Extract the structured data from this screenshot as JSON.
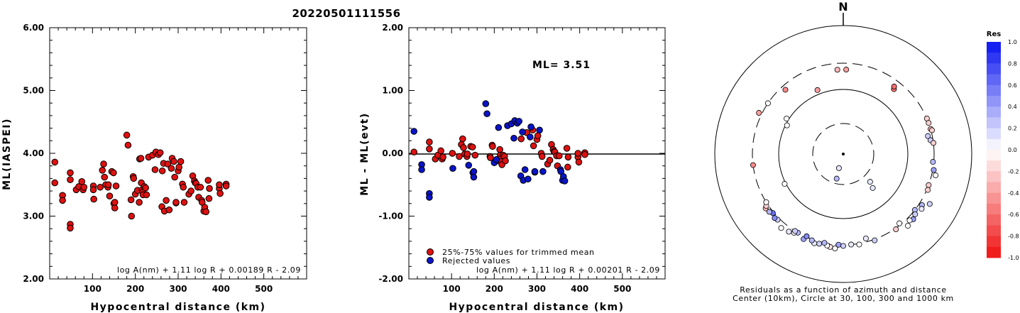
{
  "title": "20220501111556",
  "left_panel": {
    "ylabel": "ML(IASPEI)",
    "xlabel": "Hypocentral distance (km)",
    "formula": "log A(nm) + 1.11 log R + 0.00189 R - 2.09"
  },
  "mid_panel": {
    "ylabel": "ML - ML(evt)",
    "xlabel": "Hypocentral distance (km)",
    "ml_label": "ML= 3.51",
    "legend_used": "25%-75% values for trimmed mean",
    "legend_rejected": "Rejected values",
    "formula": "log A(nm) + 1.11 log R + 0.00201 R - 2.09"
  },
  "right_panel": {
    "north": "N",
    "colorbar_title": "Res",
    "caption1": "Residuals as a function of azimuth and distance",
    "caption2": "Center (10km), Circle at 30, 100, 300 and 1000 km"
  },
  "colors": {
    "used": "#dd1111",
    "rejected": "#0a14c8",
    "pos_res": "#0a14f0",
    "neg_res": "#f01010"
  },
  "chart_data": [
    {
      "type": "scatter",
      "title": "20220501111556",
      "xlabel": "Hypocentral distance (km)",
      "ylabel": "ML(IASPEI)",
      "xlim": [
        0,
        600
      ],
      "ylim": [
        2.0,
        6.0
      ],
      "x_ticks": [
        "100",
        "200",
        "300",
        "400",
        "500"
      ],
      "y_ticks": [
        "2.00",
        "3.00",
        "4.00",
        "5.00",
        "6.00"
      ],
      "points": [
        [
          12,
          3.86
        ],
        [
          12,
          3.53
        ],
        [
          30,
          3.33
        ],
        [
          30,
          3.25
        ],
        [
          48,
          3.69
        ],
        [
          48,
          3.58
        ],
        [
          48,
          2.87
        ],
        [
          48,
          2.81
        ],
        [
          62,
          3.42
        ],
        [
          68,
          3.47
        ],
        [
          75,
          3.55
        ],
        [
          78,
          3.42
        ],
        [
          80,
          3.46
        ],
        [
          102,
          3.48
        ],
        [
          102,
          3.42
        ],
        [
          103,
          3.27
        ],
        [
          118,
          3.46
        ],
        [
          123,
          3.73
        ],
        [
          126,
          3.83
        ],
        [
          128,
          3.62
        ],
        [
          131,
          3.5
        ],
        [
          136,
          3.46
        ],
        [
          137,
          3.5
        ],
        [
          140,
          3.32
        ],
        [
          145,
          3.71
        ],
        [
          149,
          3.69
        ],
        [
          150,
          3.2
        ],
        [
          152,
          3.13
        ],
        [
          152,
          3.22
        ],
        [
          155,
          3.48
        ],
        [
          180,
          4.29
        ],
        [
          183,
          4.13
        ],
        [
          190,
          3.26
        ],
        [
          191,
          3.0
        ],
        [
          195,
          3.63
        ],
        [
          196,
          3.6
        ],
        [
          200,
          3.35
        ],
        [
          205,
          3.41
        ],
        [
          209,
          3.22
        ],
        [
          210,
          3.91
        ],
        [
          213,
          3.92
        ],
        [
          214,
          3.53
        ],
        [
          216,
          3.42
        ],
        [
          217,
          3.38
        ],
        [
          218,
          3.34
        ],
        [
          221,
          3.47
        ],
        [
          224,
          3.45
        ],
        [
          226,
          3.34
        ],
        [
          231,
          3.94
        ],
        [
          240,
          3.97
        ],
        [
          246,
          3.74
        ],
        [
          248,
          4.02
        ],
        [
          254,
          3.98
        ],
        [
          258,
          4.01
        ],
        [
          262,
          3.15
        ],
        [
          263,
          3.72
        ],
        [
          266,
          3.84
        ],
        [
          268,
          3.08
        ],
        [
          272,
          3.25
        ],
        [
          276,
          3.83
        ],
        [
          279,
          3.1
        ],
        [
          284,
          3.76
        ],
        [
          286,
          3.92
        ],
        [
          290,
          3.87
        ],
        [
          292,
          3.62
        ],
        [
          295,
          3.21
        ],
        [
          295,
          3.22
        ],
        [
          300,
          3.72
        ],
        [
          302,
          3.78
        ],
        [
          306,
          3.87
        ],
        [
          310,
          3.51
        ],
        [
          312,
          3.46
        ],
        [
          314,
          3.22
        ],
        [
          325,
          3.35
        ],
        [
          330,
          3.4
        ],
        [
          334,
          3.64
        ],
        [
          338,
          3.56
        ],
        [
          340,
          3.53
        ],
        [
          342,
          3.52
        ],
        [
          346,
          3.46
        ],
        [
          348,
          3.3
        ],
        [
          352,
          3.46
        ],
        [
          355,
          3.25
        ],
        [
          356,
          3.22
        ],
        [
          360,
          3.08
        ],
        [
          362,
          3.14
        ],
        [
          365,
          3.07
        ],
        [
          370,
          3.57
        ],
        [
          372,
          3.28
        ],
        [
          373,
          3.44
        ],
        [
          396,
          3.44
        ],
        [
          396,
          3.5
        ],
        [
          398,
          3.36
        ],
        [
          412,
          3.51
        ],
        [
          412,
          3.48
        ]
      ]
    },
    {
      "type": "scatter",
      "xlabel": "Hypocentral distance (km)",
      "ylabel": "ML - ML(evt)",
      "xlim": [
        0,
        600
      ],
      "ylim": [
        -2.0,
        2.0
      ],
      "x_ticks": [
        "100",
        "200",
        "300",
        "400",
        "500"
      ],
      "y_ticks": [
        "-2.00",
        "-1.00",
        "0.00",
        "1.00",
        "2.00"
      ],
      "zero_line": 0.0,
      "series": [
        {
          "name": "25%-75% values for trimmed mean",
          "points": [
            [
              12,
              0.02
            ],
            [
              48,
              0.18
            ],
            [
              48,
              0.07
            ],
            [
              62,
              -0.09
            ],
            [
              68,
              -0.03
            ],
            [
              75,
              0.04
            ],
            [
              78,
              -0.09
            ],
            [
              80,
              -0.06
            ],
            [
              102,
              0.0
            ],
            [
              118,
              -0.05
            ],
            [
              123,
              0.14
            ],
            [
              126,
              0.23
            ],
            [
              128,
              0.09
            ],
            [
              131,
              -0.01
            ],
            [
              136,
              -0.05
            ],
            [
              137,
              -0.01
            ],
            [
              145,
              0.11
            ],
            [
              149,
              0.1
            ],
            [
              155,
              -0.03
            ],
            [
              190,
              -0.05
            ],
            [
              191,
              -0.07
            ],
            [
              195,
              0.13
            ],
            [
              196,
              0.11
            ],
            [
              209,
              -0.12
            ],
            [
              213,
              0.06
            ],
            [
              214,
              -0.03
            ],
            [
              216,
              -0.08
            ],
            [
              217,
              -0.13
            ],
            [
              218,
              -0.18
            ],
            [
              221,
              -0.03
            ],
            [
              224,
              -0.05
            ],
            [
              226,
              -0.12
            ],
            [
              263,
              0.23
            ],
            [
              276,
              0.33
            ],
            [
              290,
              0.37
            ],
            [
              292,
              0.12
            ],
            [
              300,
              0.22
            ],
            [
              302,
              0.28
            ],
            [
              310,
              0.0
            ],
            [
              312,
              -0.05
            ],
            [
              325,
              -0.17
            ],
            [
              330,
              -0.11
            ],
            [
              334,
              0.14
            ],
            [
              338,
              0.06
            ],
            [
              340,
              0.03
            ],
            [
              342,
              0.02
            ],
            [
              346,
              -0.04
            ],
            [
              348,
              -0.2
            ],
            [
              352,
              -0.04
            ],
            [
              370,
              0.08
            ],
            [
              372,
              -0.22
            ],
            [
              373,
              -0.06
            ],
            [
              396,
              -0.06
            ],
            [
              396,
              0.0
            ],
            [
              398,
              -0.14
            ],
            [
              412,
              0.01
            ],
            [
              412,
              -0.02
            ]
          ]
        },
        {
          "name": "Rejected values",
          "points": [
            [
              12,
              0.35
            ],
            [
              30,
              -0.18
            ],
            [
              30,
              -0.26
            ],
            [
              48,
              -0.64
            ],
            [
              48,
              -0.7
            ],
            [
              103,
              -0.24
            ],
            [
              140,
              -0.19
            ],
            [
              150,
              -0.31
            ],
            [
              152,
              -0.38
            ],
            [
              152,
              -0.29
            ],
            [
              180,
              0.79
            ],
            [
              183,
              0.63
            ],
            [
              200,
              -0.15
            ],
            [
              205,
              -0.1
            ],
            [
              210,
              0.41
            ],
            [
              231,
              0.44
            ],
            [
              240,
              0.47
            ],
            [
              246,
              0.24
            ],
            [
              248,
              0.52
            ],
            [
              254,
              0.48
            ],
            [
              258,
              0.51
            ],
            [
              262,
              -0.36
            ],
            [
              266,
              0.34
            ],
            [
              268,
              -0.43
            ],
            [
              272,
              -0.26
            ],
            [
              279,
              -0.41
            ],
            [
              284,
              0.26
            ],
            [
              286,
              0.42
            ],
            [
              295,
              -0.3
            ],
            [
              295,
              -0.29
            ],
            [
              306,
              0.37
            ],
            [
              314,
              -0.29
            ],
            [
              355,
              -0.26
            ],
            [
              356,
              -0.29
            ],
            [
              360,
              -0.43
            ],
            [
              362,
              -0.37
            ],
            [
              365,
              -0.44
            ]
          ]
        }
      ]
    },
    {
      "type": "scatter",
      "title": "Residuals as a function of azimuth and distance",
      "subtitle": "Center (10km), Circle at 30, 100, 300 and 1000 km",
      "colorbar_label": "Res",
      "colorbar_ticks": [
        "1.0",
        "0.8",
        "0.6",
        "0.4",
        "0.2",
        "0.0",
        "-0.2",
        "-0.4",
        "-0.6",
        "-0.8",
        "-1.0"
      ],
      "station_residuals_az_deg_dist_km_res": [
        [
          356,
          230,
          -0.3
        ],
        [
          2,
          230,
          -0.4
        ],
        [
          318,
          250,
          -0.5
        ],
        [
          338,
          120,
          -0.4
        ],
        [
          38,
          210,
          -0.6
        ],
        [
          37,
          230,
          -0.6
        ],
        [
          296,
          330,
          -0.4
        ],
        [
          304,
          300,
          0.0
        ],
        [
          302,
          110,
          0.0
        ],
        [
          297,
          95,
          0.0
        ],
        [
          195,
          25,
          0.3
        ],
        [
          197,
          17,
          0.1
        ],
        [
          263,
          300,
          -0.5
        ],
        [
          243,
          105,
          0.0
        ],
        [
          136,
          40,
          0.1
        ],
        [
          139,
          50,
          0.1
        ],
        [
          67,
          300,
          -0.2
        ],
        [
          70,
          300,
          -0.2
        ],
        [
          74,
          300,
          -0.3
        ],
        [
          75,
          310,
          -0.2
        ],
        [
          81,
          270,
          0.2
        ],
        [
          78,
          250,
          0.2
        ],
        [
          83,
          300,
          -0.2
        ],
        [
          95,
          290,
          0.3
        ],
        [
          100,
          310,
          0.4
        ],
        [
          103,
          340,
          0.0
        ],
        [
          110,
          300,
          -0.2
        ],
        [
          113,
          310,
          -0.2
        ],
        [
          120,
          400,
          0.2
        ],
        [
          123,
          330,
          0.3
        ],
        [
          125,
          350,
          0.1
        ],
        [
          128,
          300,
          0.3
        ],
        [
          130,
          330,
          0.2
        ],
        [
          133,
          350,
          0.4
        ],
        [
          135,
          330,
          0.0
        ],
        [
          138,
          360,
          0.0
        ],
        [
          141,
          280,
          0.0
        ],
        [
          145,
          310,
          -0.2
        ],
        [
          160,
          310,
          0.2
        ],
        [
          165,
          260,
          0.1
        ],
        [
          170,
          310,
          0.0
        ],
        [
          175,
          300,
          0.1
        ],
        [
          180,
          310,
          0.2
        ],
        [
          183,
          300,
          0.4
        ],
        [
          185,
          340,
          0.0
        ],
        [
          188,
          330,
          -0.1
        ],
        [
          190,
          320,
          0.0
        ],
        [
          192,
          300,
          0.3
        ],
        [
          195,
          320,
          0.2
        ],
        [
          198,
          330,
          0.1
        ],
        [
          200,
          310,
          0.3
        ],
        [
          205,
          330,
          0.4
        ],
        [
          210,
          300,
          0.3
        ],
        [
          212,
          320,
          0.0
        ],
        [
          215,
          340,
          0.1
        ],
        [
          220,
          360,
          0.0
        ],
        [
          225,
          320,
          0.2
        ],
        [
          227,
          330,
          0.5
        ],
        [
          230,
          310,
          0.6
        ],
        [
          232,
          330,
          0.3
        ],
        [
          235,
          340,
          -0.3
        ],
        [
          236,
          320,
          -0.2
        ],
        [
          238,
          300,
          0.0
        ],
        [
          212,
          300,
          0.2
        ],
        [
          204,
          290,
          0.5
        ]
      ]
    }
  ]
}
